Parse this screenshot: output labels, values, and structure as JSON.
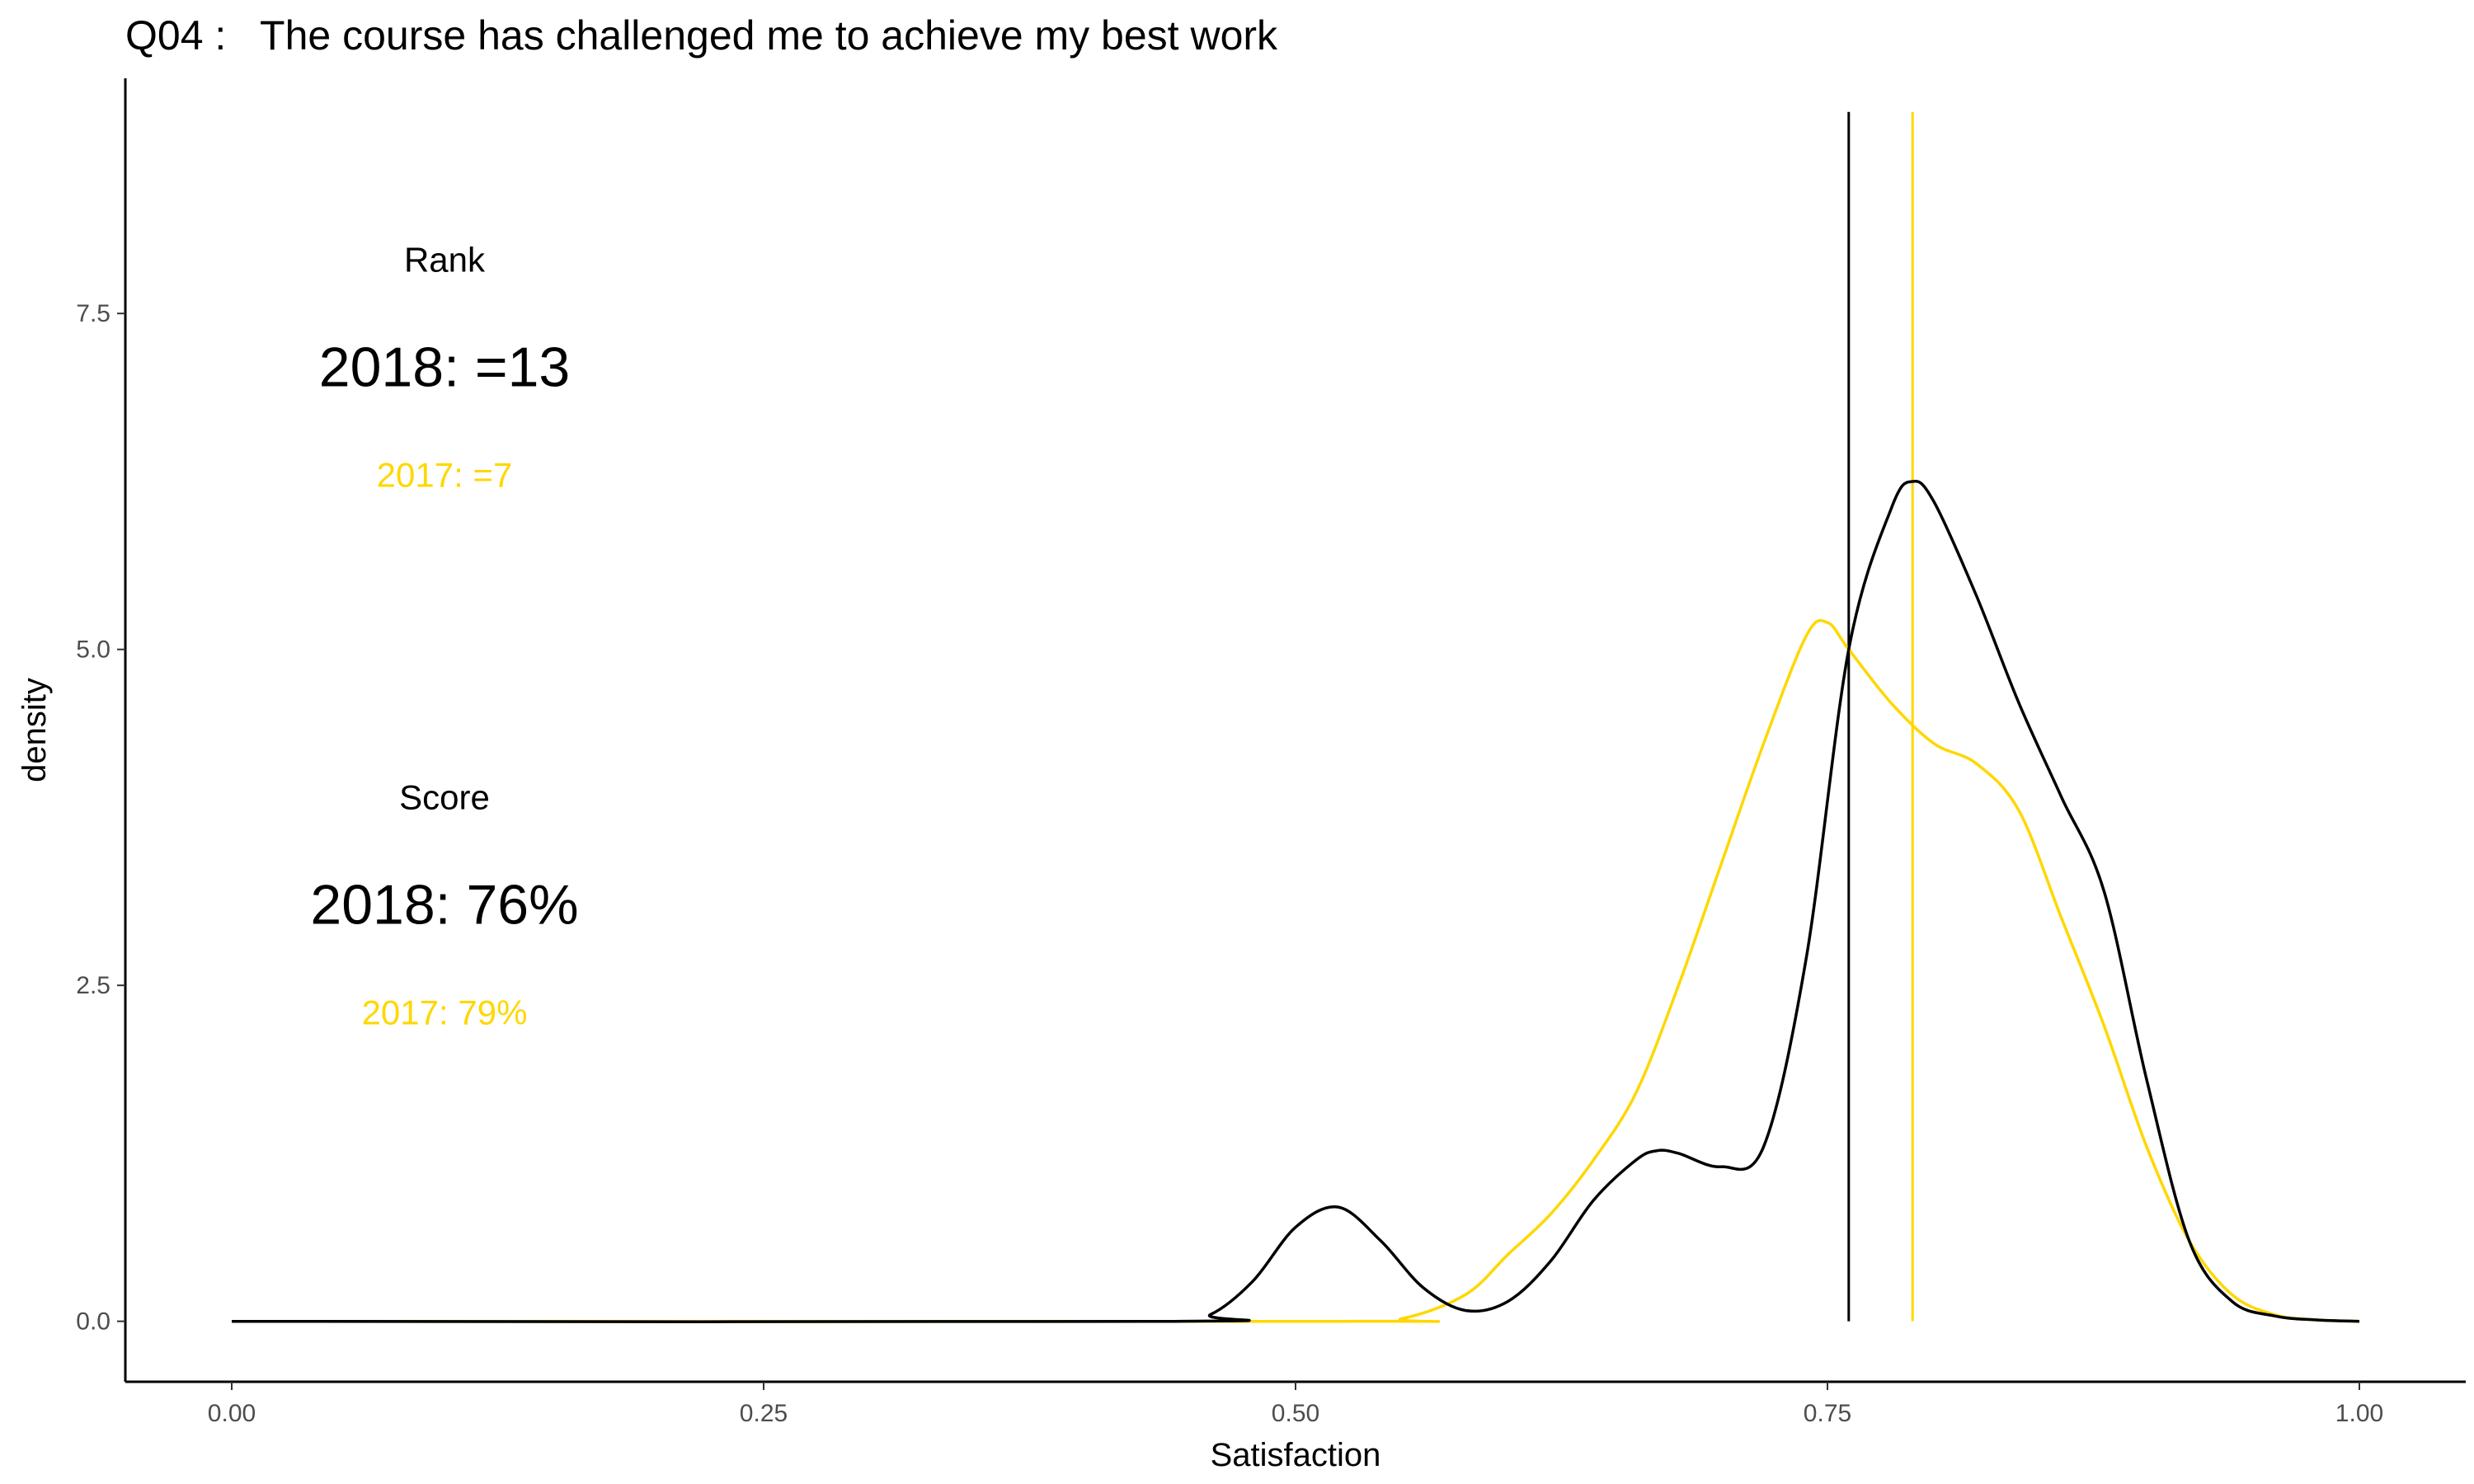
{
  "chart_data": {
    "type": "line",
    "title": "Q04 :   The course has challenged me to achieve my best work",
    "xlabel": "Satisfaction",
    "ylabel": "density",
    "xlim": [
      -0.05,
      1.05
    ],
    "ylim": [
      -0.45,
      9.25
    ],
    "x_ticks": [
      0,
      0.25,
      0.5,
      0.75,
      1
    ],
    "x_tick_labels": [
      "0.00",
      "0.25",
      "0.50",
      "0.75",
      "1.00"
    ],
    "y_ticks": [
      0,
      2.5,
      5,
      7.5
    ],
    "y_tick_labels": [
      "0.0",
      "2.5",
      "5.0",
      "7.5"
    ],
    "grid": false,
    "legend": "none",
    "series": [
      {
        "year": "2017",
        "color": "#FFD700",
        "x": [
          0.0,
          0.52,
          0.55,
          0.58,
          0.6,
          0.62,
          0.64,
          0.66,
          0.68,
          0.7,
          0.72,
          0.74,
          0.75,
          0.76,
          0.78,
          0.8,
          0.82,
          0.84,
          0.86,
          0.88,
          0.9,
          0.92,
          0.94,
          0.96,
          0.98,
          1.0
        ],
        "y": [
          0.0,
          0.0,
          0.02,
          0.2,
          0.5,
          0.8,
          1.2,
          1.7,
          2.5,
          3.4,
          4.3,
          5.1,
          5.2,
          5.0,
          4.6,
          4.3,
          4.15,
          3.8,
          3.0,
          2.2,
          1.3,
          0.6,
          0.2,
          0.05,
          0.01,
          0.0
        ]
      },
      {
        "year": "2018",
        "color": "#000000",
        "x": [
          0.0,
          0.44,
          0.46,
          0.48,
          0.5,
          0.52,
          0.54,
          0.56,
          0.58,
          0.6,
          0.62,
          0.64,
          0.66,
          0.67,
          0.68,
          0.7,
          0.72,
          0.74,
          0.76,
          0.78,
          0.79,
          0.8,
          0.82,
          0.84,
          0.86,
          0.88,
          0.9,
          0.92,
          0.94,
          0.96,
          0.98,
          1.0
        ],
        "y": [
          0.0,
          0.0,
          0.05,
          0.3,
          0.7,
          0.85,
          0.6,
          0.25,
          0.08,
          0.15,
          0.45,
          0.9,
          1.2,
          1.27,
          1.25,
          1.15,
          1.3,
          2.7,
          5.0,
          6.05,
          6.25,
          6.1,
          5.4,
          4.6,
          3.9,
          3.2,
          1.8,
          0.6,
          0.15,
          0.04,
          0.01,
          0.0
        ]
      }
    ],
    "vlines": [
      {
        "x": 0.76,
        "color": "#000000",
        "ymax": 9.0
      },
      {
        "x": 0.79,
        "color": "#FFD700",
        "ymax": 9.0
      }
    ],
    "annotations": {
      "rank": {
        "heading": "Rank",
        "current": "2018: =13",
        "previous": "2017: =7",
        "x": 0.1,
        "heading_y": 7.9,
        "current_y": 7.1,
        "previous_y": 6.3
      },
      "score": {
        "heading": "Score",
        "current": "2018: 76%",
        "previous": "2017: 79%",
        "x": 0.1,
        "heading_y": 3.9,
        "current_y": 3.1,
        "previous_y": 2.3
      }
    },
    "previous_color": "#FFD700"
  }
}
